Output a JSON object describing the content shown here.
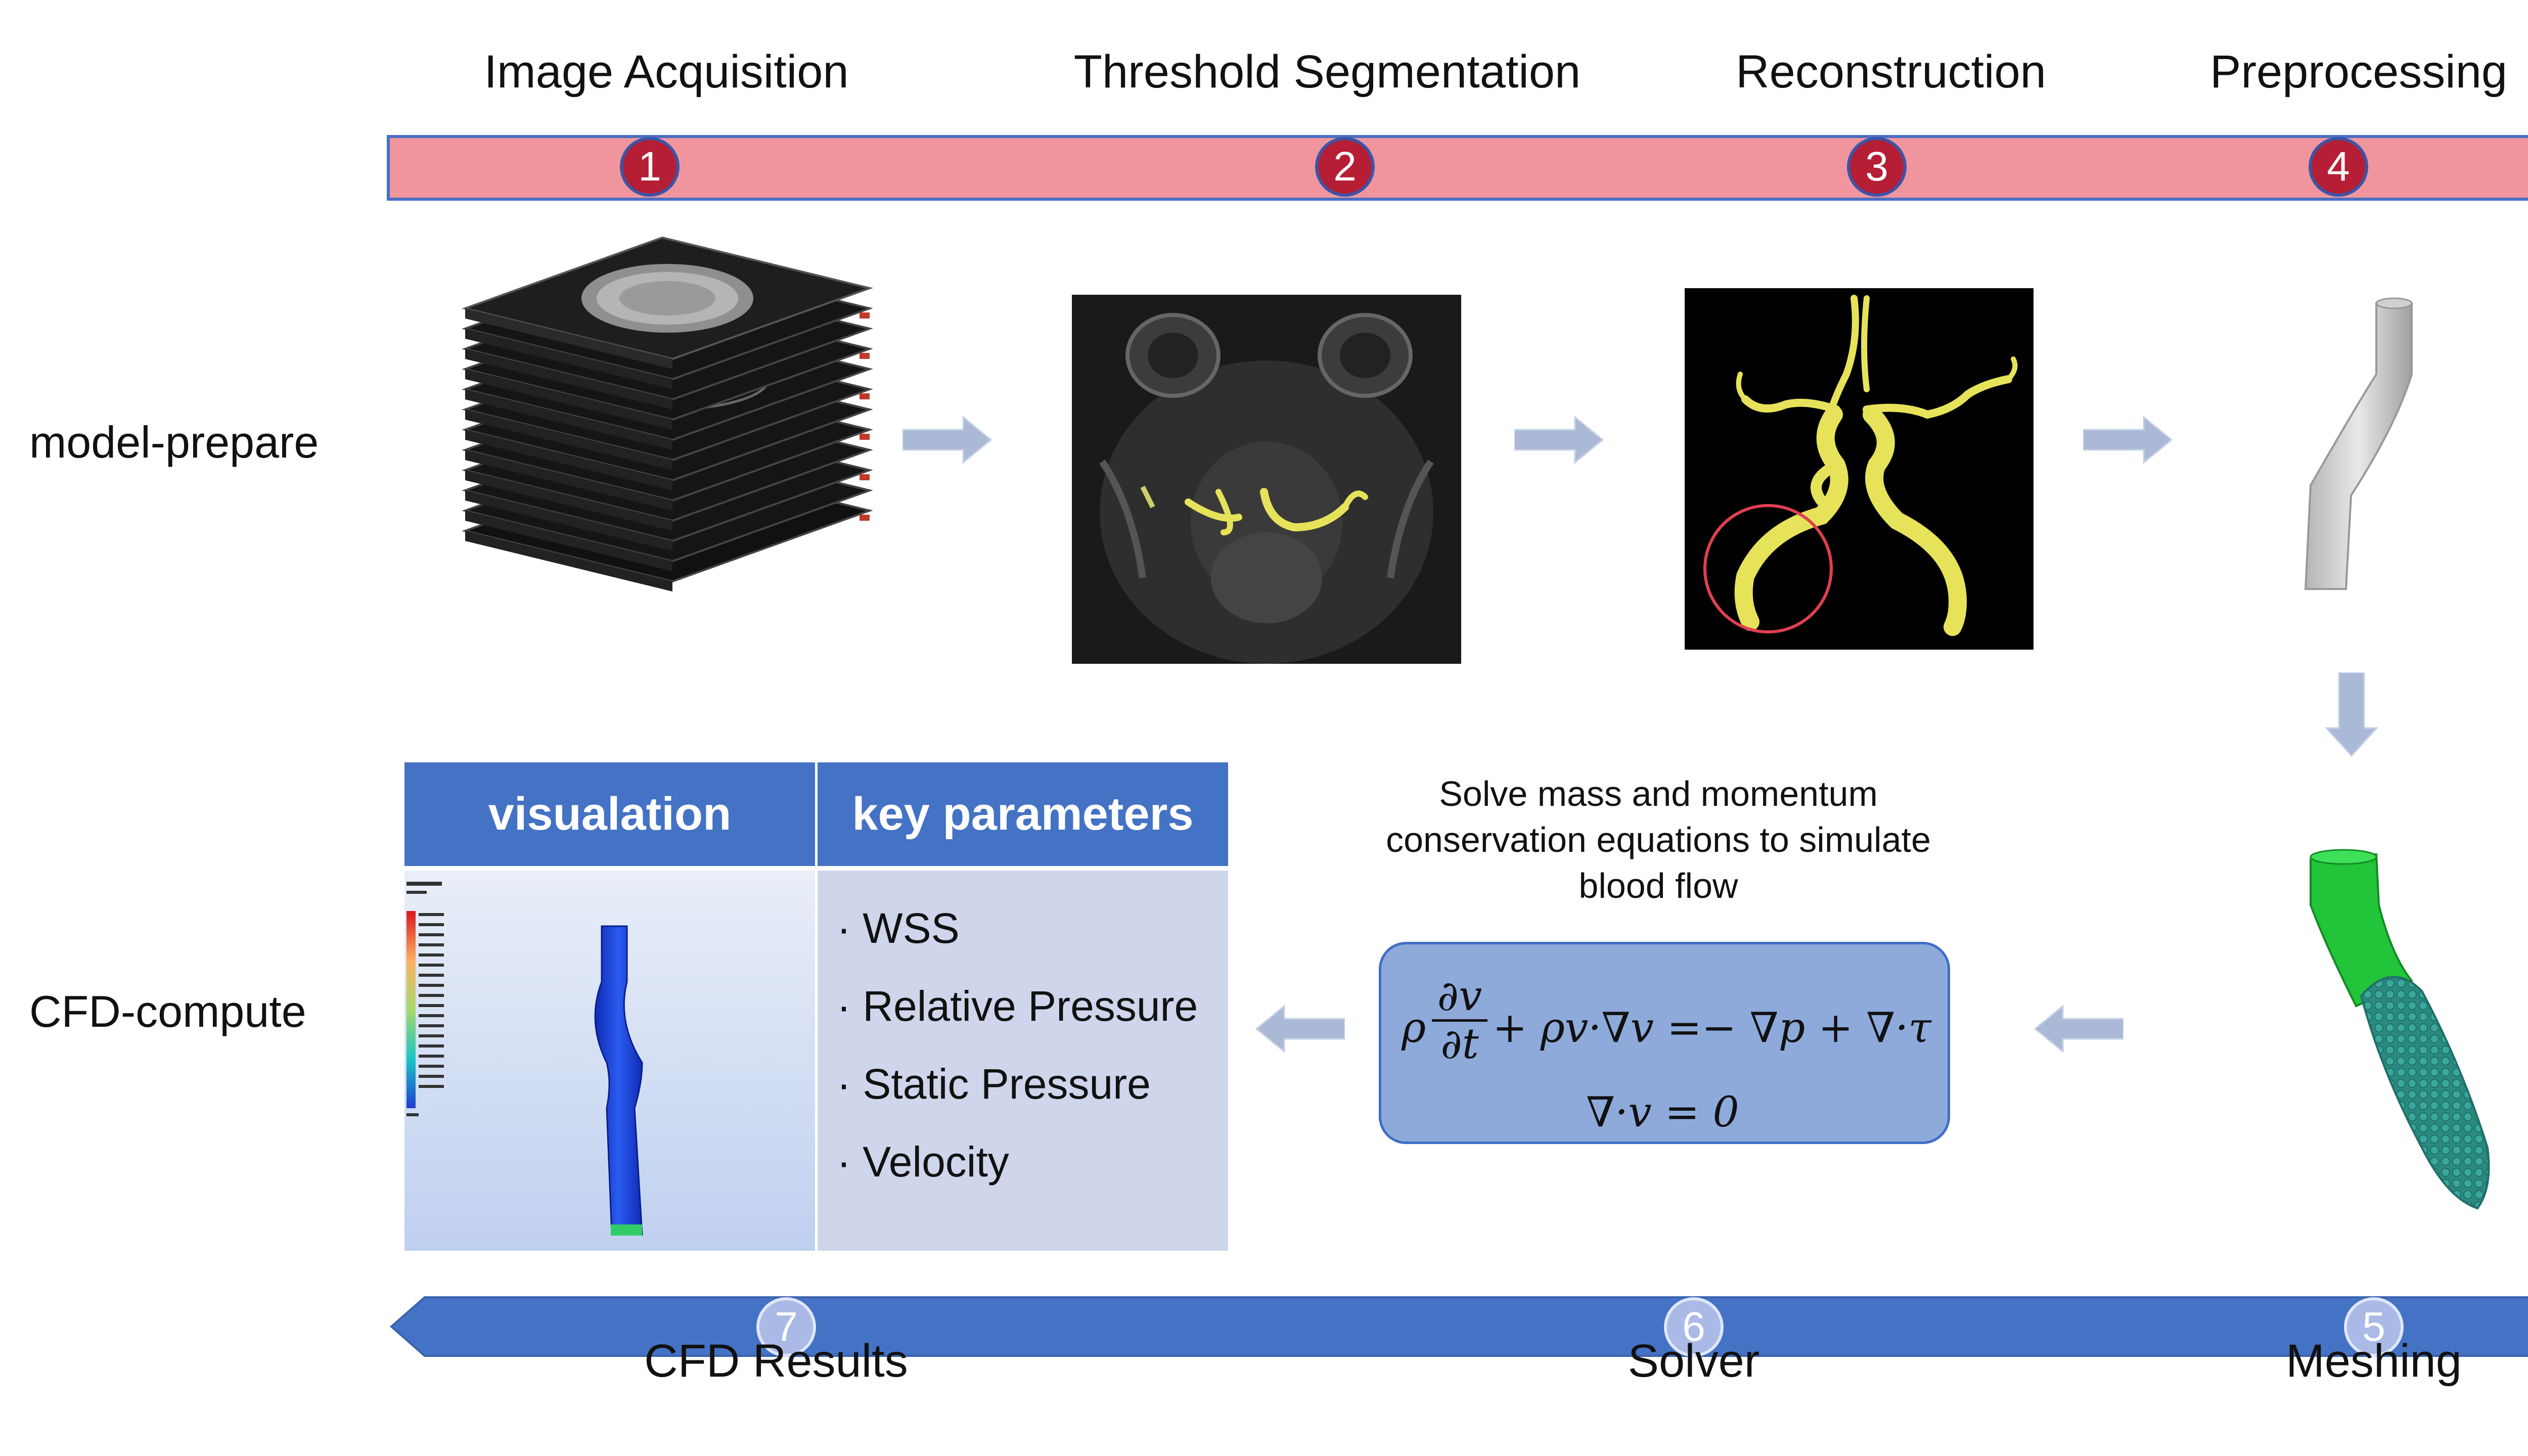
{
  "top_stages": [
    {
      "num": "1",
      "label": "Image Acquisition"
    },
    {
      "num": "2",
      "label": "Threshold Segmentation"
    },
    {
      "num": "3",
      "label": "Reconstruction"
    },
    {
      "num": "4",
      "label": "Preprocessing"
    }
  ],
  "bottom_stages": [
    {
      "num": "7",
      "label": "CFD Results"
    },
    {
      "num": "6",
      "label": "Solver"
    },
    {
      "num": "5",
      "label": "Meshing"
    }
  ],
  "rows": {
    "model_prepare": "model-prepare",
    "cfd_compute": "CFD-compute"
  },
  "results_table": {
    "col1_header": "visualation",
    "col2_header": "key parameters",
    "parameters": [
      "· WSS",
      "· Relative Pressure",
      "· Static Pressure",
      "· Velocity"
    ]
  },
  "solver": {
    "caption": "Solve mass and momentum conservation equations to simulate blood flow",
    "eq_rho": "ρ",
    "eq_frac_num": "∂v",
    "eq_frac_den": "∂t",
    "eq_rest": "+ ρv·∇v =− ∇p + ∇·τ",
    "eq_continuity": "∇·v = 0"
  },
  "colors": {
    "top_arrow": "#f0959e",
    "top_arrow_border": "#4a6fc3",
    "bottom_arrow": "#4472c4",
    "badge_red": "#b51e34",
    "badge_blue": "#aab9e6",
    "flow_arrow": "#a9b9d6",
    "vessel_yellow": "#e6e35a",
    "mesh_green": "#22c43a",
    "mesh_teal": "#2a8a80"
  }
}
